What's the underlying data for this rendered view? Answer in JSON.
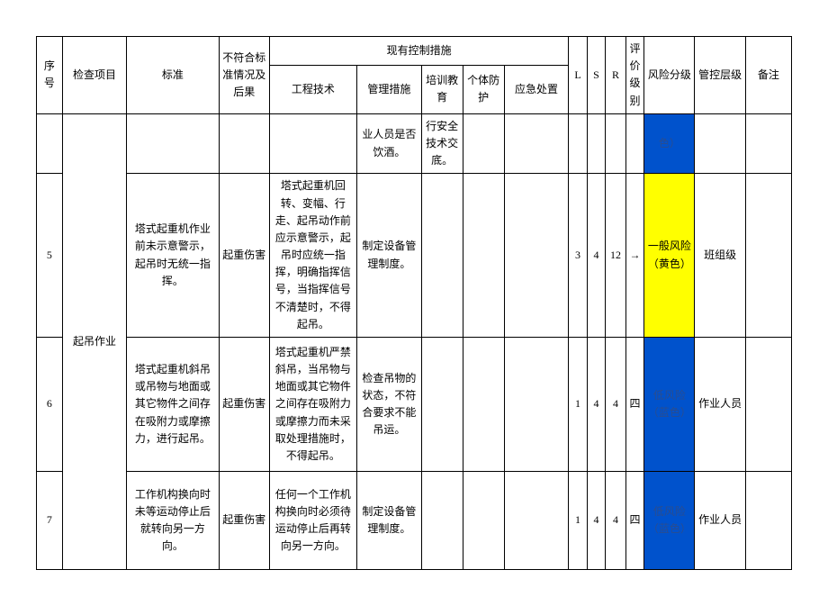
{
  "headers": {
    "seq": "序号",
    "check_item": "检查项目",
    "standard": "标准",
    "nonconformity": "不符合标准情况及后果",
    "control_measures": "现有控制措施",
    "engineering": "工程技术",
    "management": "管理措施",
    "training": "培训教育",
    "ppe": "个体防护",
    "emergency": "应急处置",
    "L": "L",
    "S": "S",
    "R": "R",
    "eval_level": "评价级别",
    "risk_level": "风险分级",
    "ctrl_level": "管控层级",
    "remark": "备注"
  },
  "rows": [
    {
      "seq": "",
      "check_item": "",
      "standard": "",
      "nonconformity": "",
      "engineering": "",
      "management": "业人员是否饮酒。",
      "training": "行安全技术交底。",
      "ppe": "",
      "emergency": "",
      "L": "",
      "S": "",
      "R": "",
      "eval_level": "",
      "risk_text": "色）",
      "risk_class": "risk-blue",
      "ctrl_level": "",
      "remark": ""
    },
    {
      "seq": "5",
      "standard": "塔式起重机作业前未示意警示，起吊时无统一指挥。",
      "nonconformity": "起重伤害",
      "engineering": "塔式起重机回转、变幅、行走、起吊动作前应示意警示，起吊时应统一指挥，明确指挥信号，当指挥信号不清楚时，不得起吊。",
      "management": "制定设备管理制度。",
      "training": "",
      "ppe": "",
      "emergency": "",
      "L": "3",
      "S": "4",
      "R": "12",
      "eval_level": "→",
      "risk_text": "一般风险（黄色）",
      "risk_class": "risk-yellow",
      "ctrl_level": "班组级",
      "remark": ""
    },
    {
      "seq": "6",
      "check_item": "起吊作业",
      "standard": "塔式起重机斜吊或吊物与地面或其它物件之间存在吸附力或摩擦力，进行起吊。",
      "nonconformity": "起重伤害",
      "engineering": "塔式起重机严禁斜吊，当吊物与地面或其它物件之间存在吸附力或摩擦力而未采取处理措施时，不得起吊。",
      "management": "检查吊物的状态，不符合要求不能吊运。",
      "training": "",
      "ppe": "",
      "emergency": "",
      "L": "1",
      "S": "4",
      "R": "4",
      "eval_level": "四",
      "risk_text": "低风险（蓝色）",
      "risk_class": "risk-blue",
      "ctrl_level": "作业人员",
      "remark": ""
    },
    {
      "seq": "7",
      "standard": "工作机构换向时未等运动停止后就转向另一方向。",
      "nonconformity": "起重伤害",
      "engineering": "任何一个工作机构换向时必须待运动停止后再转向另一方向。",
      "management": "制定设备管理制度。",
      "training": "",
      "ppe": "",
      "emergency": "",
      "L": "1",
      "S": "4",
      "R": "4",
      "eval_level": "四",
      "risk_text": "低风险（蓝色）",
      "risk_class": "risk-blue",
      "ctrl_level": "作业人员",
      "remark": ""
    }
  ]
}
